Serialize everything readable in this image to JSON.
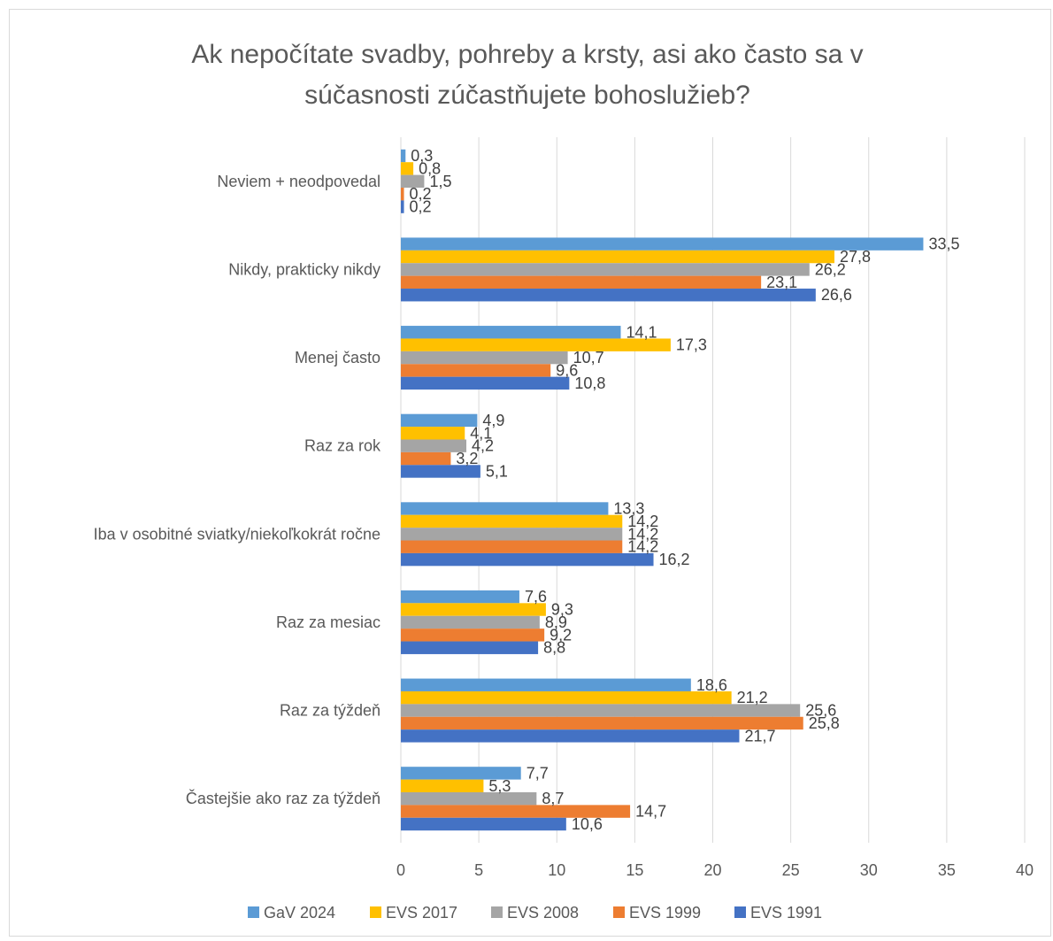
{
  "chart_data": {
    "type": "bar",
    "orientation": "horizontal",
    "title_lines": [
      "Ak nepočítate svadby, pohreby a krsty, asi ako často sa v",
      "súčasnosti zúčastňujete bohoslužieb?"
    ],
    "categories": [
      "Neviem + neodpovedal",
      "Nikdy, prakticky nikdy",
      "Menej často",
      "Raz za rok",
      "Iba v osobitné sviatky/niekoľkokrát ročne",
      "Raz za mesiac",
      "Raz za týždeň",
      "Častejšie ako raz za týždeň"
    ],
    "series": [
      {
        "name": "GaV 2024",
        "color": "#5b9bd5",
        "values": [
          0.3,
          33.5,
          14.1,
          4.9,
          13.3,
          7.6,
          18.6,
          7.7
        ],
        "labels": [
          "0,3",
          "33,5",
          "14,1",
          "4,9",
          "13,3",
          "7,6",
          "18,6",
          "7,7"
        ]
      },
      {
        "name": "EVS 2017",
        "color": "#ffc000",
        "values": [
          0.8,
          27.8,
          17.3,
          4.1,
          14.2,
          9.3,
          21.2,
          5.3
        ],
        "labels": [
          "0,8",
          "27,8",
          "17,3",
          "4,1",
          "14,2",
          "9,3",
          "21,2",
          "5,3"
        ]
      },
      {
        "name": "EVS 2008",
        "color": "#a5a5a5",
        "values": [
          1.5,
          26.2,
          10.7,
          4.2,
          14.2,
          8.9,
          25.6,
          8.7
        ],
        "labels": [
          "1,5",
          "26,2",
          "10,7",
          "4,2",
          "14,2",
          "8,9",
          "25,6",
          "8,7"
        ]
      },
      {
        "name": "EVS 1999",
        "color": "#ed7d31",
        "values": [
          0.2,
          23.1,
          9.6,
          3.2,
          14.2,
          9.2,
          25.8,
          14.7
        ],
        "labels": [
          "0,2",
          "23,1",
          "9,6",
          "3,2",
          "14,2",
          "9,2",
          "25,8",
          "14,7"
        ]
      },
      {
        "name": "EVS 1991",
        "color": "#4472c4",
        "values": [
          0.2,
          26.6,
          10.8,
          5.1,
          16.2,
          8.8,
          21.7,
          10.6
        ],
        "labels": [
          "0,2",
          "26,6",
          "10,8",
          "5,1",
          "16,2",
          "8,8",
          "21,7",
          "10,6"
        ]
      }
    ],
    "xlim": [
      0,
      40
    ],
    "xticks": [
      0,
      5,
      10,
      15,
      20,
      25,
      30,
      35,
      40
    ],
    "grid": true,
    "legend_position": "bottom"
  }
}
